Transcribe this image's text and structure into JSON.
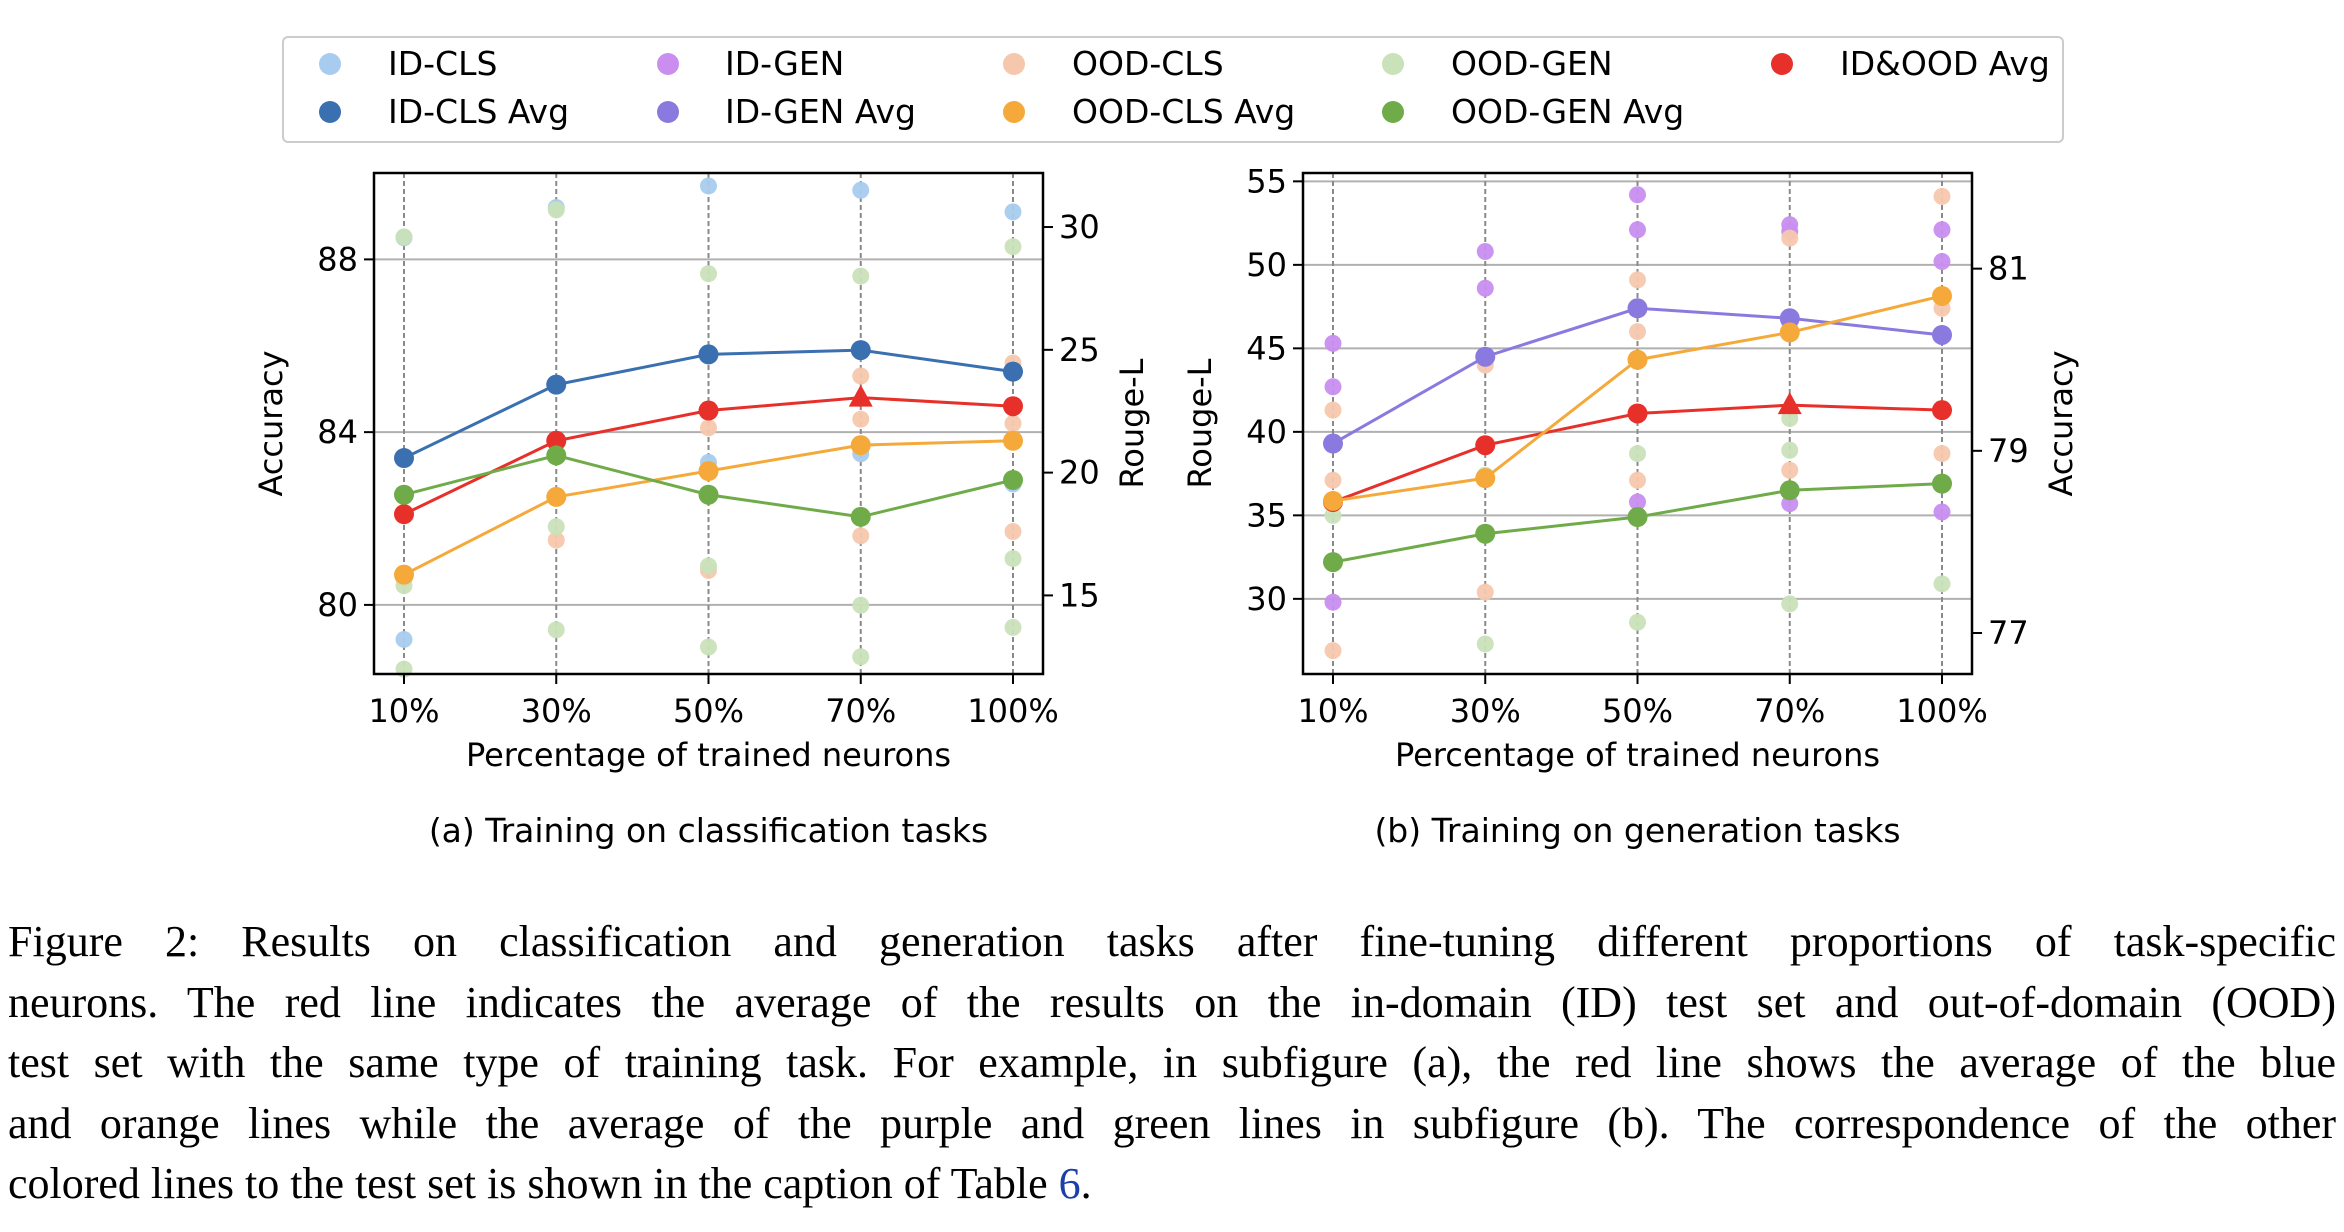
{
  "legend": [
    {
      "label": "ID-CLS",
      "color": "#a8ccef"
    },
    {
      "label": "ID-CLS Avg",
      "color": "#3a6fb0"
    },
    {
      "label": "ID-GEN",
      "color": "#c98ef0"
    },
    {
      "label": "ID-GEN Avg",
      "color": "#8a7ae0"
    },
    {
      "label": "OOD-CLS",
      "color": "#f5c8ae"
    },
    {
      "label": "OOD-CLS Avg",
      "color": "#f5a93a"
    },
    {
      "label": "OOD-GEN",
      "color": "#c9e2b9"
    },
    {
      "label": "OOD-GEN Avg",
      "color": "#70ab4a"
    },
    {
      "label": "ID&OOD Avg",
      "color": "#e8302a"
    }
  ],
  "chart_data": [
    {
      "type": "line",
      "caption": "(a) Training on classification tasks",
      "xlabel": "Percentage of trained neurons",
      "ylabel": "Accuracy",
      "y2label": "Rouge-L",
      "categories": [
        "10%",
        "30%",
        "50%",
        "70%",
        "100%"
      ],
      "ylim": [
        78.4,
        90.0
      ],
      "y2lim": [
        11.8,
        32.2
      ],
      "yticks": [
        "80",
        "84",
        "88"
      ],
      "y2ticks": [
        "15",
        "20",
        "25",
        "30"
      ],
      "series": [
        {
          "name": "ID-CLS Avg",
          "axis": "left",
          "values": [
            83.4,
            85.1,
            85.8,
            85.9,
            85.4
          ]
        },
        {
          "name": "OOD-CLS Avg",
          "axis": "left",
          "values": [
            80.7,
            82.5,
            83.1,
            83.7,
            83.8
          ]
        },
        {
          "name": "ID&OOD Avg",
          "axis": "left",
          "values": [
            82.1,
            83.8,
            84.5,
            84.8,
            84.6
          ],
          "max_marker": "70%"
        },
        {
          "name": "OOD-GEN Avg",
          "axis": "right",
          "values": [
            19.1,
            20.7,
            19.1,
            18.2,
            19.7
          ]
        }
      ],
      "scatter": [
        {
          "name": "ID-CLS",
          "axis": "left",
          "points": [
            [
              0,
              88.5
            ],
            [
              0,
              79.2
            ],
            [
              1,
              89.2
            ],
            [
              2,
              89.7
            ],
            [
              2,
              83.3
            ],
            [
              3,
              89.6
            ],
            [
              3,
              83.5
            ],
            [
              4,
              89.1
            ],
            [
              4,
              82.8
            ]
          ]
        },
        {
          "name": "OOD-CLS",
          "axis": "left",
          "points": [
            [
              0,
              82.5
            ],
            [
              0,
              80.6
            ],
            [
              1,
              83.5
            ],
            [
              1,
              81.5
            ],
            [
              2,
              84.1
            ],
            [
              2,
              80.8
            ],
            [
              3,
              85.3
            ],
            [
              3,
              84.3
            ],
            [
              3,
              81.6
            ],
            [
              4,
              85.6
            ],
            [
              4,
              84.2
            ],
            [
              4,
              81.7
            ]
          ]
        },
        {
          "name": "OOD-GEN",
          "axis": "right",
          "points": [
            [
              0,
              29.6
            ],
            [
              0,
              15.4
            ],
            [
              0,
              12.0
            ],
            [
              1,
              30.7
            ],
            [
              1,
              17.8
            ],
            [
              1,
              13.6
            ],
            [
              2,
              28.1
            ],
            [
              2,
              16.2
            ],
            [
              2,
              12.9
            ],
            [
              3,
              28.0
            ],
            [
              3,
              14.6
            ],
            [
              3,
              12.5
            ],
            [
              4,
              29.2
            ],
            [
              4,
              16.5
            ],
            [
              4,
              13.7
            ]
          ]
        }
      ]
    },
    {
      "type": "line",
      "caption": "(b) Training on generation tasks",
      "xlabel": "Percentage of trained neurons",
      "ylabel": "Rouge-L",
      "y2label": "Accuracy",
      "categories": [
        "10%",
        "30%",
        "50%",
        "70%",
        "100%"
      ],
      "ylim": [
        25.5,
        55.5
      ],
      "y2lim": [
        76.55,
        82.05
      ],
      "yticks": [
        "30",
        "35",
        "40",
        "45",
        "50",
        "55"
      ],
      "y2ticks": [
        "77",
        "79",
        "81"
      ],
      "series": [
        {
          "name": "ID-GEN Avg",
          "axis": "left",
          "values": [
            39.3,
            44.5,
            47.4,
            46.8,
            45.8
          ]
        },
        {
          "name": "OOD-GEN Avg",
          "axis": "left",
          "values": [
            32.2,
            33.9,
            34.9,
            36.5,
            36.9
          ]
        },
        {
          "name": "ID&OOD Avg",
          "axis": "left",
          "values": [
            35.8,
            39.2,
            41.1,
            41.6,
            41.3
          ],
          "max_marker": "70%"
        },
        {
          "name": "OOD-CLS Avg",
          "axis": "right",
          "values": [
            78.45,
            78.7,
            80.0,
            80.3,
            80.7
          ]
        }
      ],
      "scatter": [
        {
          "name": "ID-GEN",
          "axis": "left",
          "points": [
            [
              0,
              45.3
            ],
            [
              0,
              42.7
            ],
            [
              0,
              29.8
            ],
            [
              1,
              50.8
            ],
            [
              1,
              48.6
            ],
            [
              2,
              54.2
            ],
            [
              2,
              52.1
            ],
            [
              2,
              35.8
            ],
            [
              3,
              52.4
            ],
            [
              3,
              52.0
            ],
            [
              3,
              35.7
            ],
            [
              4,
              52.1
            ],
            [
              4,
              50.2
            ],
            [
              4,
              35.2
            ]
          ]
        },
        {
          "name": "OOD-CLS",
          "axis": "left",
          "points": [
            [
              0,
              41.3
            ],
            [
              0,
              37.1
            ],
            [
              0,
              26.9
            ],
            [
              1,
              44.0
            ],
            [
              1,
              30.4
            ],
            [
              2,
              49.1
            ],
            [
              2,
              46.0
            ],
            [
              2,
              37.1
            ],
            [
              3,
              51.6
            ],
            [
              3,
              46.5
            ],
            [
              3,
              37.7
            ],
            [
              4,
              54.1
            ],
            [
              4,
              47.4
            ],
            [
              4,
              38.7
            ]
          ]
        },
        {
          "name": "OOD-GEN",
          "axis": "left",
          "points": [
            [
              0,
              35.0
            ],
            [
              1,
              37.4
            ],
            [
              1,
              27.3
            ],
            [
              2,
              38.7
            ],
            [
              2,
              28.6
            ],
            [
              3,
              40.8
            ],
            [
              3,
              38.9
            ],
            [
              3,
              29.7
            ],
            [
              4,
              30.9
            ]
          ]
        }
      ]
    }
  ],
  "caption_lines": [
    "Figure 2: Results on classification and generation tasks after fine-tuning different proportions of task-specific",
    "neurons. The red line indicates the average of the results on the in-domain (ID) test set and out-of-domain (OOD)",
    "test set with the same type of training task. For example, in subfigure (a), the red line shows the average of the blue",
    "and orange lines while the average of the purple and green lines in subfigure (b). The correspondence of the other"
  ],
  "caption_last_prefix": "colored lines to the test set is shown in the caption of Table ",
  "caption_ref": "6",
  "caption_last_suffix": "."
}
